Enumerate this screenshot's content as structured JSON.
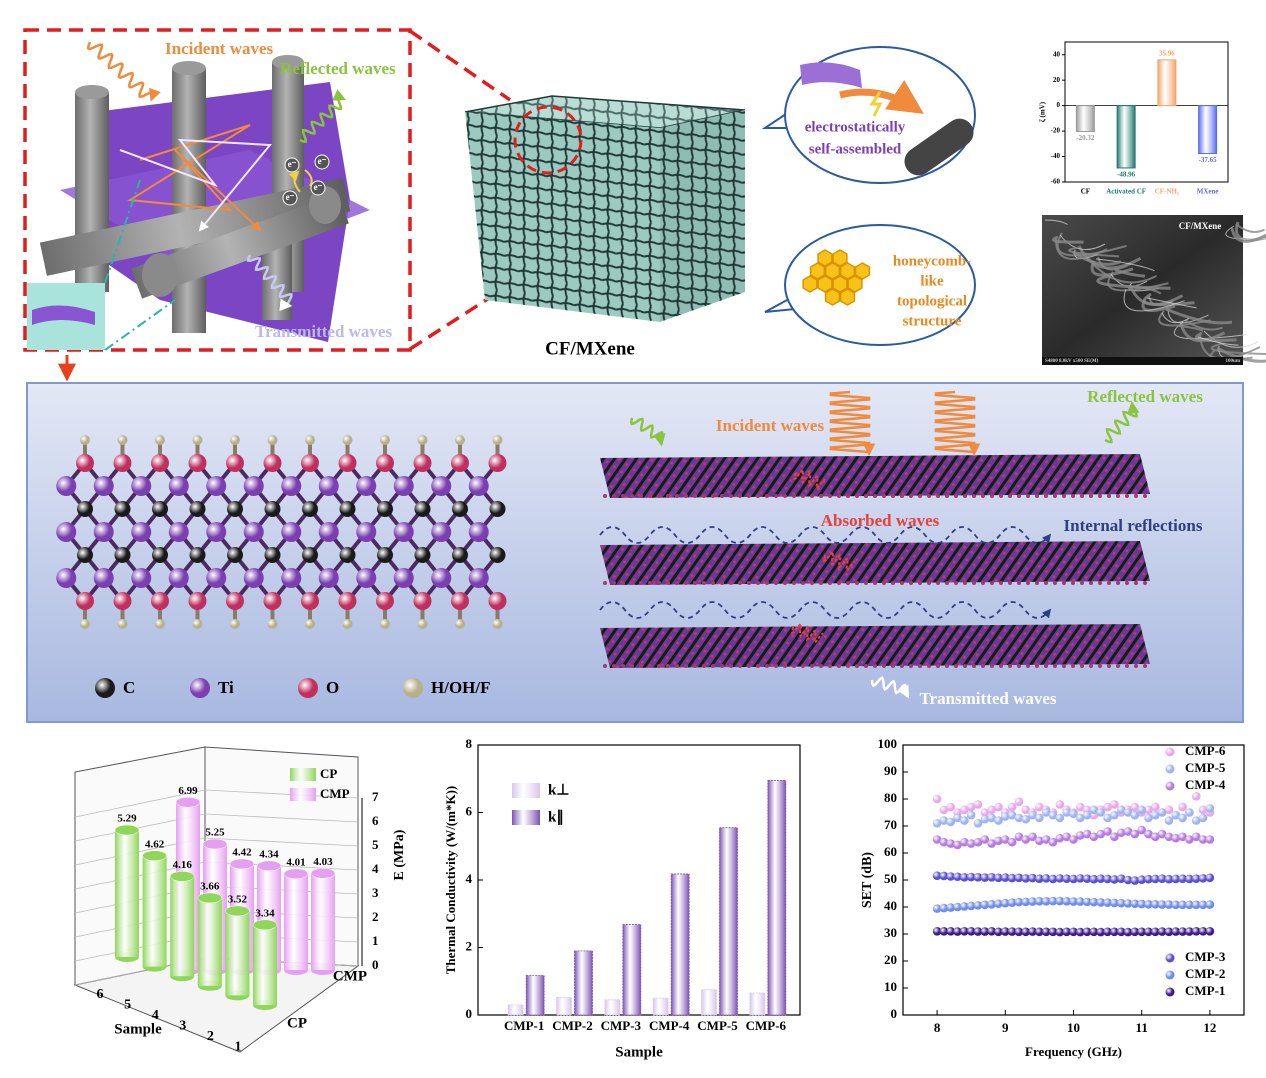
{
  "diagram": {
    "top": {
      "incident_waves": "Incident waves",
      "reflected_waves": "Reflected waves",
      "transmitted_waves": "Transmitted waves",
      "electron": "e⁻",
      "cube_label": "CF/MXene",
      "bubble1": [
        "electrostatically",
        "self-assembled"
      ],
      "bubble2": [
        "honeycomb-",
        "like",
        "topological",
        "structure"
      ],
      "sem_label": "CF/MXene",
      "sem_info": "S4800 8.0kV x500 SE(M)",
      "sem_scale": "100um"
    },
    "middle": {
      "incident_waves": "Incident waves",
      "reflected_waves": "Reflected waves",
      "absorbed_waves": "Absorbed waves",
      "internal_reflections": "Internal reflections",
      "transmitted_waves": "Transmitted waves",
      "legend": [
        "C",
        "Ti",
        "O",
        "H/OH/F"
      ]
    }
  },
  "chart_data": [
    {
      "type": "bar",
      "y_label": "ζ (mV)",
      "categories": [
        "CF",
        "Activated CF",
        "CF-NH₂",
        "MXene"
      ],
      "values": [
        -20.32,
        -48.96,
        35.96,
        -37.65
      ],
      "colors": [
        "#9a9a9a",
        "#1f7a6e",
        "#f4a46a",
        "#5b6cf0"
      ],
      "ylim": [
        -60,
        50
      ],
      "yticks": [
        -60,
        -40,
        -20,
        0,
        20,
        40
      ]
    },
    {
      "type": "bar3d",
      "x_label": "Sample",
      "z_label": "E (MPa)",
      "categories": [
        1,
        2,
        3,
        4,
        5,
        6
      ],
      "series": [
        {
          "name": "CP",
          "color": "#8fd65a",
          "values": [
            3.34,
            3.52,
            3.66,
            4.16,
            4.62,
            5.29
          ]
        },
        {
          "name": "CMP",
          "color": "#e59ff0",
          "values": [
            4.03,
            4.01,
            4.34,
            4.42,
            5.25,
            6.99
          ]
        }
      ],
      "zlim": [
        0,
        7
      ],
      "zticks": [
        0,
        1,
        2,
        3,
        4,
        5,
        6,
        7
      ]
    },
    {
      "type": "grouped_bar",
      "x_label": "Sample",
      "y_label": "Thermal Conductivity (W/(m*K))",
      "categories": [
        "CMP-1",
        "CMP-2",
        "CMP-3",
        "CMP-4",
        "CMP-5",
        "CMP-6"
      ],
      "series": [
        {
          "name": "k⊥",
          "color": "#d8c6ea",
          "values": [
            0.3,
            0.52,
            0.45,
            0.5,
            0.75,
            0.65
          ]
        },
        {
          "name": "k∥",
          "color": "#7b52b3",
          "values": [
            1.17,
            1.9,
            2.68,
            4.18,
            5.55,
            6.95
          ]
        }
      ],
      "ylim": [
        0,
        8
      ],
      "yticks": [
        0,
        2,
        4,
        6,
        8
      ]
    },
    {
      "type": "scatter",
      "x_label": "Frequency (GHz)",
      "y_label": "SET (dB)",
      "x": [
        8,
        8.1,
        8.2,
        8.3,
        8.4,
        8.5,
        8.6,
        8.7,
        8.8,
        8.9,
        9,
        9.1,
        9.2,
        9.3,
        9.4,
        9.5,
        9.6,
        9.7,
        9.8,
        9.9,
        10,
        10.1,
        10.2,
        10.3,
        10.4,
        10.5,
        10.6,
        10.7,
        10.8,
        10.9,
        11,
        11.1,
        11.2,
        11.3,
        11.4,
        11.5,
        11.6,
        11.7,
        11.8,
        11.9,
        12
      ],
      "series": [
        {
          "name": "CMP-6",
          "color": "#eaa6ea",
          "values": [
            80,
            76,
            77,
            75,
            76,
            77,
            78,
            75,
            76,
            77,
            75,
            77,
            79,
            76,
            75,
            77,
            76,
            75,
            78,
            76,
            75,
            77,
            76,
            74,
            76,
            77,
            78,
            75,
            76,
            77,
            75,
            76,
            77,
            75,
            76,
            74,
            77,
            75,
            81,
            76,
            75
          ]
        },
        {
          "name": "CMP-5",
          "color": "#9fb3f0",
          "values": [
            71,
            72,
            71.5,
            73,
            72,
            74,
            71,
            72.5,
            73,
            72,
            73.5,
            74,
            73,
            72.5,
            74,
            73,
            75,
            74,
            73,
            75,
            74.5,
            73,
            74,
            76,
            75,
            73,
            74,
            76,
            75,
            74,
            76,
            73,
            74,
            75,
            72,
            74,
            73,
            75,
            72,
            73,
            76.5
          ]
        },
        {
          "name": "CMP-4",
          "color": "#b57be2",
          "values": [
            65,
            64,
            63.5,
            63,
            64,
            63.5,
            64,
            65,
            63.5,
            64.5,
            65,
            64,
            66,
            65,
            66,
            64.5,
            65,
            64,
            65.5,
            66,
            65,
            66.5,
            67,
            66,
            67,
            68,
            66,
            67.5,
            68,
            67,
            68.5,
            67,
            66,
            67,
            66,
            65.5,
            66,
            65,
            66,
            65,
            65
          ]
        },
        {
          "name": "CMP-3",
          "color": "#5a4fd0",
          "values": [
            51.6,
            51.5,
            51.3,
            51.2,
            51,
            51.1,
            51,
            50.9,
            51,
            50.8,
            50.9,
            50.7,
            50.8,
            50.6,
            50.7,
            50.5,
            50.6,
            50.4,
            50.6,
            50.5,
            50.4,
            50.6,
            50.5,
            50.3,
            50.5,
            50.4,
            50.2,
            50.5,
            50,
            49.8,
            50.1,
            50.3,
            50.4,
            50.5,
            50.3,
            50.4,
            50.5,
            50.4,
            50.5,
            50.6,
            50.8
          ]
        },
        {
          "name": "CMP-2",
          "color": "#6f8cea",
          "values": [
            39.4,
            39.6,
            39.8,
            40,
            40.2,
            40.4,
            40.6,
            40.8,
            41,
            41.2,
            41.4,
            41.6,
            41.8,
            41.9,
            42,
            42.1,
            42.1,
            42.2,
            42.2,
            42.1,
            42,
            42,
            41.9,
            41.8,
            41.7,
            41.6,
            41.5,
            41.4,
            41.3,
            41.2,
            41.1,
            41,
            41,
            40.9,
            40.9,
            40.8,
            40.8,
            40.8,
            40.8,
            40.8,
            40.9
          ]
        },
        {
          "name": "CMP-1",
          "color": "#3a1a8c",
          "values": [
            31,
            31,
            31,
            30.9,
            31,
            31,
            30.9,
            30.9,
            31,
            30.8,
            30.9,
            30.9,
            30.8,
            30.8,
            30.9,
            30.8,
            30.8,
            30.8,
            30.7,
            30.8,
            30.8,
            30.7,
            30.8,
            30.8,
            30.7,
            30.8,
            30.8,
            30.8,
            30.7,
            30.8,
            30.8,
            30.8,
            30.8,
            30.9,
            30.8,
            30.9,
            30.9,
            30.9,
            31,
            31,
            31
          ]
        }
      ],
      "xlim": [
        7.5,
        12.5
      ],
      "xticks": [
        8,
        9,
        10,
        11,
        12
      ],
      "ylim": [
        0,
        100
      ],
      "yticks": [
        0,
        10,
        20,
        30,
        40,
        50,
        60,
        70,
        80,
        90,
        100
      ]
    }
  ]
}
